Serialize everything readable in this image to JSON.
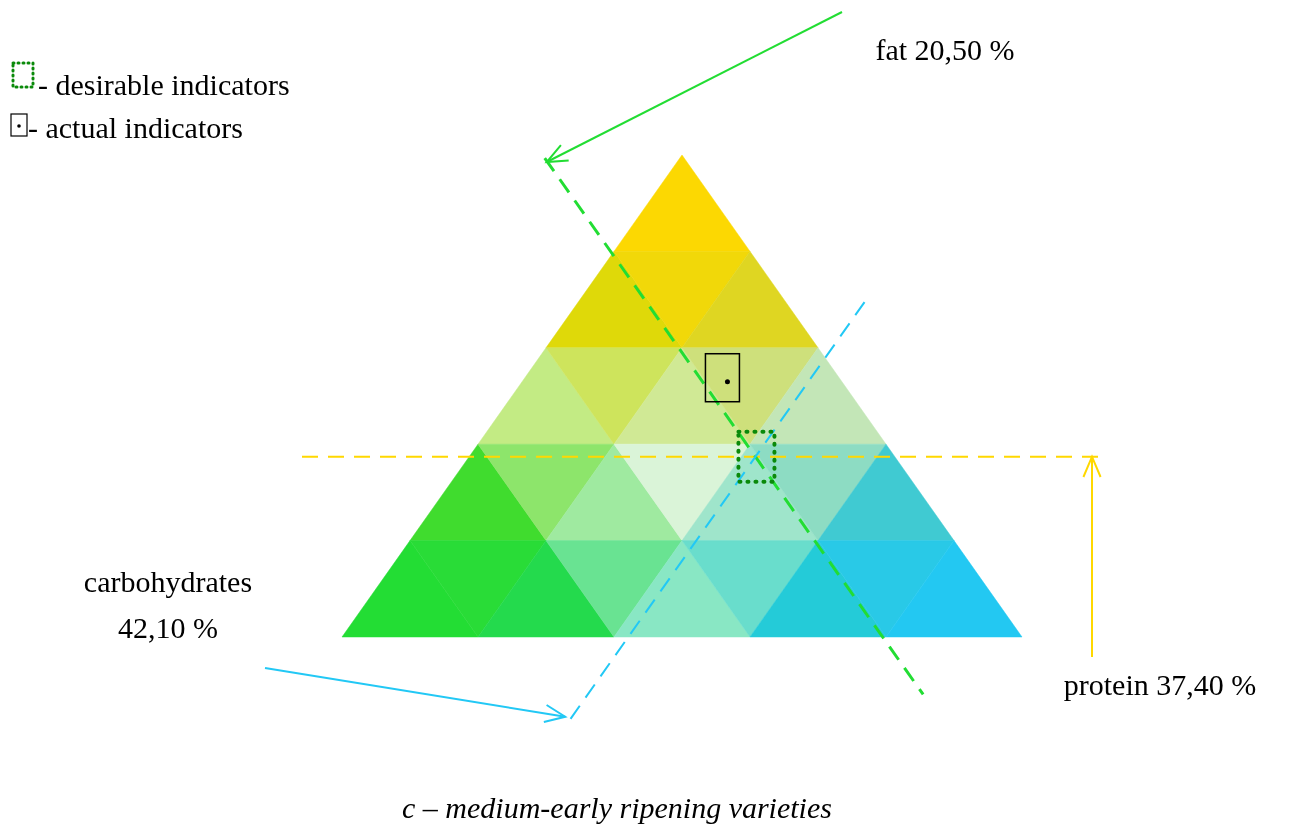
{
  "chart_data": {
    "type": "other",
    "subtitle": "c – medium-early ripening varieties",
    "categories": [
      "protein",
      "fat",
      "carbohydrates"
    ],
    "values": [
      37.4,
      20.5,
      42.1
    ],
    "value_labels": [
      "37,40 %",
      "20,50 %",
      "42,10 %"
    ],
    "colors": [
      "#ffd800",
      "#22dd33",
      "#22c8f5"
    ],
    "annotations": [
      "- desirable indicators",
      "- actual indicators"
    ]
  }
}
